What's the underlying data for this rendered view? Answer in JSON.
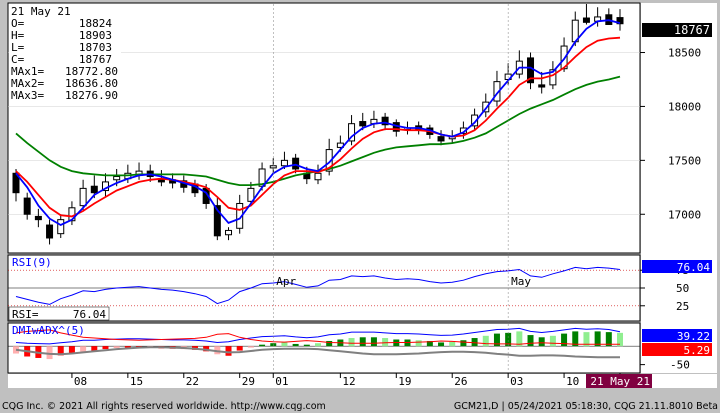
{
  "header": {
    "date": "21 May 21",
    "rows": [
      {
        "label": "O=",
        "value": "18824"
      },
      {
        "label": "H=",
        "value": "18903"
      },
      {
        "label": "L=",
        "value": "18703"
      },
      {
        "label": "C=",
        "value": "18767"
      },
      {
        "label": "MAx1=",
        "value": "18772.80"
      },
      {
        "label": "MAx2=",
        "value": "18636.80"
      },
      {
        "label": "MAx3=",
        "value": "18276.90"
      }
    ]
  },
  "price_tag": "18767",
  "rsi_panel": {
    "title": "RSI(9)",
    "readout_label": "RSI=",
    "readout_value": "76.04",
    "tag": "76.04"
  },
  "dmi_panel": {
    "title": "DMIwADX^(5)",
    "tag1": "39.22",
    "tag2": "5.29"
  },
  "footer": {
    "left": "CQG Inc. © 2021 All rights reserved worldwide. http://www.cqg.com",
    "right": "GCM21,D | 05/24/2021 05:18:30, CQG 21.11.8010 Beta"
  },
  "x_axis_current": "21 May 21",
  "colors": {
    "bg": "#ffffff",
    "frame": "#c0c0c0",
    "ma1": "#0000ff",
    "ma2": "#ff0000",
    "ma3": "#008000",
    "rsi": "#0000ff",
    "ref": "#cc0000",
    "adx": "#808080",
    "tag_dark": "#000000",
    "tag_blue": "#0000ff",
    "tag_red": "#ff0000"
  },
  "chart_data": [
    {
      "type": "candlestick",
      "title": "GCM21,D",
      "y_ticks": [
        17000,
        17500,
        18000,
        18500
      ],
      "ylim": [
        16650,
        18950
      ],
      "x_ticks": [
        {
          "label": "08",
          "index": 5
        },
        {
          "label": "15",
          "index": 10
        },
        {
          "label": "22",
          "index": 15
        },
        {
          "label": "29",
          "index": 20
        },
        {
          "label": "01",
          "index": 23
        },
        {
          "label": "Apr",
          "index": 23,
          "month": true
        },
        {
          "label": "12",
          "index": 29
        },
        {
          "label": "19",
          "index": 34
        },
        {
          "label": "26",
          "index": 39
        },
        {
          "label": "03",
          "index": 44
        },
        {
          "label": "May",
          "index": 44,
          "month": true
        },
        {
          "label": "10",
          "index": 49
        },
        {
          "label": "1",
          "index": 54
        }
      ],
      "open": [
        17380,
        17150,
        16980,
        16900,
        16820,
        16940,
        17080,
        17260,
        17220,
        17320,
        17330,
        17360,
        17400,
        17330,
        17320,
        17310,
        17280,
        17240,
        17080,
        16810,
        16870,
        17120,
        17260,
        17430,
        17450,
        17520,
        17380,
        17320,
        17400,
        17620,
        17680,
        17860,
        17840,
        17900,
        17850,
        17790,
        17820,
        17800,
        17720,
        17700,
        17750,
        17820,
        17950,
        18050,
        18250,
        18300,
        18450,
        18200,
        18200,
        18350,
        18600,
        18820,
        18790,
        18850,
        18824
      ],
      "close": [
        17200,
        17000,
        16950,
        16780,
        16950,
        17060,
        17240,
        17200,
        17300,
        17350,
        17380,
        17400,
        17350,
        17300,
        17290,
        17250,
        17200,
        17100,
        16800,
        16850,
        17100,
        17240,
        17420,
        17450,
        17500,
        17420,
        17330,
        17380,
        17600,
        17660,
        17840,
        17820,
        17880,
        17830,
        17770,
        17800,
        17790,
        17740,
        17680,
        17720,
        17800,
        17920,
        18040,
        18230,
        18300,
        18420,
        18220,
        18180,
        18340,
        18560,
        18800,
        18780,
        18830,
        18760,
        18767
      ],
      "high": [
        17420,
        17200,
        17050,
        16950,
        17000,
        17120,
        17320,
        17360,
        17380,
        17420,
        17460,
        17480,
        17460,
        17410,
        17380,
        17360,
        17320,
        17280,
        17150,
        16880,
        17180,
        17300,
        17480,
        17520,
        17580,
        17560,
        17440,
        17460,
        17700,
        17730,
        17920,
        17940,
        17960,
        17940,
        17880,
        17860,
        17860,
        17830,
        17780,
        17780,
        17860,
        17980,
        18120,
        18330,
        18400,
        18520,
        18500,
        18320,
        18420,
        18640,
        18880,
        18950,
        18920,
        18910,
        18903
      ],
      "low": [
        17120,
        16950,
        16880,
        16720,
        16780,
        16900,
        17040,
        17150,
        17160,
        17260,
        17290,
        17320,
        17300,
        17260,
        17240,
        17200,
        17160,
        17050,
        16760,
        16760,
        16820,
        17080,
        17220,
        17380,
        17420,
        17380,
        17280,
        17280,
        17360,
        17580,
        17640,
        17780,
        17800,
        17780,
        17720,
        17740,
        17740,
        17700,
        17640,
        17660,
        17700,
        17780,
        17900,
        18000,
        18200,
        18260,
        18160,
        18120,
        18160,
        18320,
        18560,
        18760,
        18740,
        18780,
        18703
      ],
      "ma1": [
        17380,
        17250,
        17080,
        16960,
        16900,
        16950,
        17060,
        17180,
        17240,
        17290,
        17330,
        17360,
        17370,
        17350,
        17320,
        17290,
        17260,
        17200,
        17040,
        16920,
        16960,
        17100,
        17250,
        17380,
        17440,
        17460,
        17420,
        17400,
        17480,
        17600,
        17720,
        17800,
        17840,
        17850,
        17820,
        17800,
        17800,
        17780,
        17740,
        17720,
        17760,
        17850,
        17980,
        18120,
        18240,
        18360,
        18360,
        18300,
        18320,
        18440,
        18600,
        18720,
        18790,
        18800,
        18773
      ],
      "ma2": [
        17400,
        17300,
        17180,
        17060,
        16990,
        16980,
        17030,
        17100,
        17160,
        17220,
        17260,
        17300,
        17320,
        17330,
        17320,
        17300,
        17280,
        17250,
        17160,
        17060,
        17040,
        17080,
        17180,
        17280,
        17360,
        17400,
        17400,
        17390,
        17430,
        17510,
        17610,
        17700,
        17760,
        17790,
        17790,
        17780,
        17780,
        17770,
        17740,
        17720,
        17730,
        17780,
        17870,
        17980,
        18080,
        18200,
        18260,
        18260,
        18290,
        18360,
        18460,
        18550,
        18610,
        18630,
        18637
      ],
      "ma3": [
        17750,
        17660,
        17580,
        17500,
        17440,
        17400,
        17380,
        17370,
        17360,
        17360,
        17360,
        17370,
        17370,
        17370,
        17370,
        17370,
        17360,
        17350,
        17320,
        17290,
        17270,
        17270,
        17280,
        17300,
        17330,
        17360,
        17380,
        17400,
        17420,
        17450,
        17490,
        17530,
        17570,
        17600,
        17620,
        17630,
        17640,
        17650,
        17650,
        17660,
        17680,
        17710,
        17750,
        17810,
        17870,
        17930,
        17980,
        18020,
        18060,
        18110,
        18160,
        18200,
        18230,
        18250,
        18277
      ]
    },
    {
      "type": "line",
      "title": "RSI(9)",
      "y_ticks": [
        25,
        50,
        75
      ],
      "ylim": [
        5,
        95
      ],
      "reference_lines": [
        75,
        50,
        25
      ],
      "values": [
        38,
        34,
        30,
        27,
        35,
        40,
        46,
        45,
        48,
        50,
        51,
        52,
        50,
        48,
        47,
        45,
        42,
        38,
        28,
        33,
        45,
        50,
        56,
        57,
        59,
        55,
        51,
        53,
        61,
        62,
        67,
        66,
        67,
        64,
        62,
        63,
        62,
        59,
        57,
        58,
        61,
        66,
        70,
        73,
        74,
        76,
        67,
        65,
        70,
        74,
        79,
        77,
        79,
        78,
        76
      ]
    },
    {
      "type": "bar",
      "title": "DMIwADX^(5)",
      "y_ticks": [
        -50
      ],
      "ylim": [
        -70,
        60
      ],
      "values": [
        -20,
        -28,
        -32,
        -35,
        -25,
        -20,
        -15,
        -12,
        -8,
        -5,
        -4,
        -3,
        -4,
        -6,
        -7,
        -8,
        -10,
        -14,
        -22,
        -26,
        -12,
        -4,
        4,
        8,
        10,
        6,
        4,
        8,
        14,
        18,
        22,
        24,
        24,
        22,
        18,
        18,
        16,
        14,
        10,
        12,
        16,
        22,
        28,
        34,
        36,
        40,
        30,
        24,
        28,
        34,
        40,
        38,
        40,
        38,
        36
      ],
      "di_plus": [
        10,
        8,
        7,
        6,
        9,
        12,
        16,
        16,
        18,
        19,
        20,
        20,
        19,
        18,
        17,
        17,
        16,
        14,
        10,
        12,
        18,
        22,
        26,
        27,
        28,
        25,
        23,
        25,
        31,
        33,
        38,
        38,
        38,
        36,
        34,
        34,
        33,
        31,
        29,
        30,
        33,
        37,
        41,
        45,
        46,
        48,
        40,
        37,
        40,
        44,
        48,
        46,
        47,
        45,
        39
      ],
      "di_minus": [
        36,
        40,
        42,
        44,
        36,
        30,
        24,
        22,
        20,
        18,
        17,
        16,
        17,
        18,
        19,
        20,
        21,
        24,
        32,
        34,
        24,
        18,
        14,
        12,
        11,
        13,
        15,
        13,
        10,
        9,
        8,
        8,
        8,
        9,
        10,
        10,
        11,
        12,
        14,
        13,
        11,
        9,
        7,
        6,
        6,
        5,
        8,
        9,
        8,
        7,
        5,
        5,
        5,
        5,
        5
      ],
      "adx": [
        30,
        34,
        38,
        41,
        42,
        40,
        37,
        34,
        31,
        28,
        26,
        24,
        23,
        23,
        24,
        25,
        27,
        30,
        34,
        37,
        36,
        33,
        30,
        28,
        27,
        27,
        27,
        28,
        31,
        34,
        37,
        40,
        42,
        42,
        42,
        41,
        40,
        38,
        36,
        35,
        35,
        36,
        38,
        41,
        43,
        46,
        46,
        45,
        45,
        46,
        48,
        49,
        50,
        50,
        50
      ]
    }
  ]
}
